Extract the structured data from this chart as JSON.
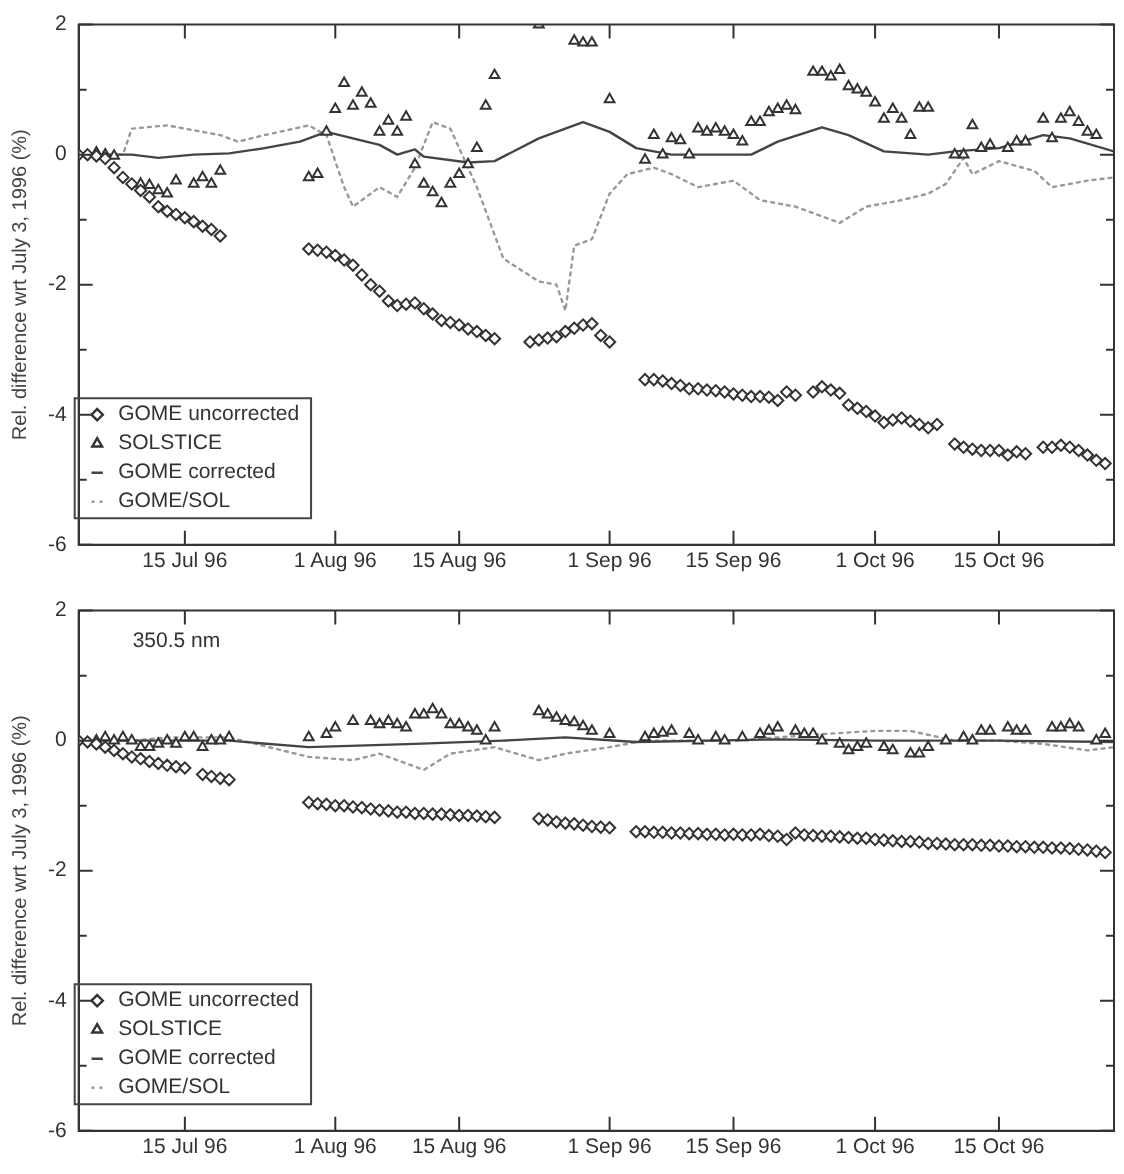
{
  "chart_data": [
    {
      "type": "scatter",
      "ylabel": "Rel. difference wrt July 3, 1996 (%)",
      "xlim": [
        "1996-07-03",
        "1996-10-28"
      ],
      "xticks": [
        {
          "value": "1996-07-15",
          "label": "15 Jul 96"
        },
        {
          "value": "1996-08-01",
          "label": "1 Aug 96"
        },
        {
          "value": "1996-08-15",
          "label": "15 Aug 96"
        },
        {
          "value": "1996-09-01",
          "label": "1 Sep 96"
        },
        {
          "value": "1996-09-15",
          "label": "15 Sep 96"
        },
        {
          "value": "1996-10-01",
          "label": "1 Oct 96"
        },
        {
          "value": "1996-10-15",
          "label": "15 Oct 96"
        }
      ],
      "ylim": [
        -6,
        2
      ],
      "yticks": [
        -6,
        {
          "value": -5,
          "label": null
        },
        -4,
        {
          "value": -3,
          "label": null
        },
        -2,
        {
          "value": -1,
          "label": null
        },
        0,
        {
          "value": 1,
          "label": null
        },
        2
      ],
      "legend": "bottom left",
      "series": [
        {
          "name": "GOME uncorrected",
          "type": "scatter",
          "marker": "diamond",
          "color": "#333333",
          "x": [
            "1996-07-03",
            "1996-07-04",
            "1996-07-05",
            "1996-07-06",
            "1996-07-07",
            "1996-07-08",
            "1996-07-09",
            "1996-07-10",
            "1996-07-11",
            "1996-07-12",
            "1996-07-13",
            "1996-07-14",
            "1996-07-15",
            "1996-07-16",
            "1996-07-17",
            "1996-07-18",
            "1996-07-19",
            "1996-07-29",
            "1996-07-30",
            "1996-07-31",
            "1996-08-01",
            "1996-08-02",
            "1996-08-03",
            "1996-08-04",
            "1996-08-05",
            "1996-08-06",
            "1996-08-07",
            "1996-08-08",
            "1996-08-09",
            "1996-08-10",
            "1996-08-11",
            "1996-08-12",
            "1996-08-13",
            "1996-08-14",
            "1996-08-15",
            "1996-08-16",
            "1996-08-17",
            "1996-08-18",
            "1996-08-19",
            "1996-08-23",
            "1996-08-24",
            "1996-08-25",
            "1996-08-26",
            "1996-08-27",
            "1996-08-28",
            "1996-08-29",
            "1996-08-30",
            "1996-08-31",
            "1996-09-01",
            "1996-09-05",
            "1996-09-06",
            "1996-09-07",
            "1996-09-08",
            "1996-09-09",
            "1996-09-10",
            "1996-09-11",
            "1996-09-12",
            "1996-09-13",
            "1996-09-14",
            "1996-09-15",
            "1996-09-16",
            "1996-09-17",
            "1996-09-18",
            "1996-09-19",
            "1996-09-20",
            "1996-09-21",
            "1996-09-22",
            "1996-09-24",
            "1996-09-25",
            "1996-09-26",
            "1996-09-27",
            "1996-09-28",
            "1996-09-29",
            "1996-09-30",
            "1996-10-01",
            "1996-10-02",
            "1996-10-03",
            "1996-10-04",
            "1996-10-05",
            "1996-10-06",
            "1996-10-07",
            "1996-10-08",
            "1996-10-10",
            "1996-10-11",
            "1996-10-12",
            "1996-10-13",
            "1996-10-14",
            "1996-10-15",
            "1996-10-16",
            "1996-10-17",
            "1996-10-18",
            "1996-10-20",
            "1996-10-21",
            "1996-10-22",
            "1996-10-23",
            "1996-10-24",
            "1996-10-25",
            "1996-10-26",
            "1996-10-27"
          ],
          "values": [
            0,
            0,
            -0.02,
            -0.06,
            -0.2,
            -0.35,
            -0.45,
            -0.55,
            -0.65,
            -0.8,
            -0.87,
            -0.92,
            -0.97,
            -1.03,
            -1.1,
            -1.15,
            -1.25,
            -1.45,
            -1.47,
            -1.5,
            -1.55,
            -1.62,
            -1.7,
            -1.85,
            -2.0,
            -2.1,
            -2.25,
            -2.32,
            -2.3,
            -2.28,
            -2.37,
            -2.45,
            -2.55,
            -2.58,
            -2.62,
            -2.68,
            -2.72,
            -2.78,
            -2.83,
            -2.88,
            -2.85,
            -2.82,
            -2.8,
            -2.72,
            -2.67,
            -2.62,
            -2.6,
            -2.78,
            -2.88,
            -3.46,
            -3.46,
            -3.48,
            -3.52,
            -3.55,
            -3.6,
            -3.6,
            -3.62,
            -3.63,
            -3.65,
            -3.68,
            -3.7,
            -3.72,
            -3.72,
            -3.73,
            -3.78,
            -3.65,
            -3.7,
            -3.65,
            -3.57,
            -3.62,
            -3.67,
            -3.85,
            -3.9,
            -3.95,
            -4.02,
            -4.12,
            -4.08,
            -4.05,
            -4.1,
            -4.15,
            -4.2,
            -4.15,
            -4.45,
            -4.5,
            -4.53,
            -4.55,
            -4.55,
            -4.55,
            -4.62,
            -4.57,
            -4.6,
            -4.5,
            -4.5,
            -4.47,
            -4.5,
            -4.55,
            -4.62,
            -4.7,
            -4.75
          ]
        },
        {
          "name": "SOLSTICE",
          "type": "scatter",
          "marker": "triangle",
          "color": "#333333",
          "x": [
            "1996-07-05",
            "1996-07-06",
            "1996-07-07",
            "1996-07-10",
            "1996-07-11",
            "1996-07-12",
            "1996-07-13",
            "1996-07-14",
            "1996-07-16",
            "1996-07-17",
            "1996-07-18",
            "1996-07-19",
            "1996-07-29",
            "1996-07-30",
            "1996-07-31",
            "1996-08-01",
            "1996-08-02",
            "1996-08-03",
            "1996-08-04",
            "1996-08-05",
            "1996-08-06",
            "1996-08-07",
            "1996-08-08",
            "1996-08-09",
            "1996-08-10",
            "1996-08-11",
            "1996-08-12",
            "1996-08-13",
            "1996-08-14",
            "1996-08-15",
            "1996-08-16",
            "1996-08-17",
            "1996-08-18",
            "1996-08-19",
            "1996-08-24",
            "1996-08-28",
            "1996-08-29",
            "1996-08-30",
            "1996-09-01",
            "1996-09-05",
            "1996-09-06",
            "1996-09-07",
            "1996-09-08",
            "1996-09-09",
            "1996-09-10",
            "1996-09-11",
            "1996-09-12",
            "1996-09-13",
            "1996-09-14",
            "1996-09-15",
            "1996-09-16",
            "1996-09-17",
            "1996-09-18",
            "1996-09-19",
            "1996-09-20",
            "1996-09-21",
            "1996-09-22",
            "1996-09-24",
            "1996-09-25",
            "1996-09-26",
            "1996-09-27",
            "1996-09-28",
            "1996-09-29",
            "1996-09-30",
            "1996-10-01",
            "1996-10-02",
            "1996-10-03",
            "1996-10-04",
            "1996-10-05",
            "1996-10-06",
            "1996-10-07",
            "1996-10-10",
            "1996-10-11",
            "1996-10-12",
            "1996-10-13",
            "1996-10-14",
            "1996-10-16",
            "1996-10-17",
            "1996-10-18",
            "1996-10-20",
            "1996-10-21",
            "1996-10-22",
            "1996-10-23",
            "1996-10-24",
            "1996-10-25",
            "1996-10-26"
          ],
          "values": [
            0.03,
            0.0,
            -0.02,
            -0.45,
            -0.47,
            -0.55,
            -0.6,
            -0.4,
            -0.45,
            -0.35,
            -0.45,
            -0.25,
            -0.35,
            -0.3,
            0.35,
            0.7,
            1.1,
            0.75,
            0.95,
            0.78,
            0.35,
            0.52,
            0.35,
            0.58,
            -0.15,
            -0.45,
            -0.58,
            -0.75,
            -0.45,
            -0.3,
            -0.15,
            0.1,
            0.75,
            1.22,
            2.0,
            1.75,
            1.72,
            1.72,
            0.85,
            -0.08,
            0.3,
            0.0,
            0.25,
            0.22,
            0.0,
            0.4,
            0.35,
            0.4,
            0.35,
            0.3,
            0.2,
            0.5,
            0.5,
            0.65,
            0.7,
            0.75,
            0.68,
            1.27,
            1.27,
            1.2,
            1.3,
            1.05,
            1.0,
            0.95,
            0.8,
            0.55,
            0.7,
            0.55,
            0.3,
            0.72,
            0.72,
            0.0,
            0.0,
            0.45,
            0.1,
            0.15,
            0.1,
            0.2,
            0.2,
            0.55,
            0.25,
            0.55,
            0.65,
            0.5,
            0.35,
            0.3
          ]
        },
        {
          "name": "GOME corrected",
          "type": "line",
          "line_style": "solid",
          "color": "#444444",
          "x": [
            "1996-07-03",
            "1996-07-09",
            "1996-07-12",
            "1996-07-16",
            "1996-07-20",
            "1996-07-24",
            "1996-07-28",
            "1996-07-31",
            "1996-08-03",
            "1996-08-06",
            "1996-08-08",
            "1996-08-10",
            "1996-08-11",
            "1996-08-16",
            "1996-08-19",
            "1996-08-24",
            "1996-08-29",
            "1996-09-01",
            "1996-09-04",
            "1996-09-08",
            "1996-09-12",
            "1996-09-17",
            "1996-09-20",
            "1996-09-25",
            "1996-09-28",
            "1996-10-02",
            "1996-10-07",
            "1996-10-10",
            "1996-10-15",
            "1996-10-20",
            "1996-10-23",
            "1996-10-28"
          ],
          "values": [
            0,
            0,
            -0.05,
            0,
            0.02,
            0.1,
            0.2,
            0.35,
            0.25,
            0.15,
            0.0,
            0.08,
            -0.03,
            -0.12,
            -0.1,
            0.25,
            0.5,
            0.35,
            0.1,
            0.0,
            0.0,
            0.0,
            0.2,
            0.42,
            0.3,
            0.05,
            0.0,
            0.05,
            0.1,
            0.3,
            0.25,
            0.05
          ]
        },
        {
          "name": "GOME/SOL",
          "type": "line",
          "line_style": "dotted",
          "color": "#999999",
          "x": [
            "1996-07-03",
            "1996-07-08",
            "1996-07-09",
            "1996-07-13",
            "1996-07-19",
            "1996-07-21",
            "1996-07-24",
            "1996-07-29",
            "1996-07-31",
            "1996-08-02",
            "1996-08-03",
            "1996-08-06",
            "1996-08-08",
            "1996-08-10",
            "1996-08-12",
            "1996-08-14",
            "1996-08-17",
            "1996-08-20",
            "1996-08-24",
            "1996-08-26",
            "1996-08-27",
            "1996-08-28",
            "1996-08-30",
            "1996-09-01",
            "1996-09-03",
            "1996-09-06",
            "1996-09-08",
            "1996-09-11",
            "1996-09-15",
            "1996-09-18",
            "1996-09-22",
            "1996-09-24",
            "1996-09-27",
            "1996-09-30",
            "1996-10-04",
            "1996-10-07",
            "1996-10-09",
            "1996-10-11",
            "1996-10-12",
            "1996-10-15",
            "1996-10-19",
            "1996-10-21",
            "1996-10-25",
            "1996-10-28"
          ],
          "values": [
            0,
            0.0,
            0.4,
            0.45,
            0.3,
            0.2,
            0.3,
            0.45,
            0.3,
            -0.5,
            -0.8,
            -0.5,
            -0.65,
            -0.2,
            0.5,
            0.4,
            -0.5,
            -1.6,
            -1.95,
            -2.0,
            -2.4,
            -1.4,
            -1.3,
            -0.6,
            -0.3,
            -0.2,
            -0.3,
            -0.5,
            -0.4,
            -0.7,
            -0.8,
            -0.9,
            -1.05,
            -0.8,
            -0.7,
            -0.6,
            -0.45,
            -0.05,
            -0.3,
            -0.1,
            -0.25,
            -0.5,
            -0.4,
            -0.35
          ]
        }
      ]
    },
    {
      "type": "scatter",
      "ylabel": "Rel. difference wrt July 3, 1996 (%)",
      "annotations": [
        "350.5 nm"
      ],
      "xlim": [
        "1996-07-03",
        "1996-10-28"
      ],
      "xticks": [
        {
          "value": "1996-07-15",
          "label": "15 Jul 96"
        },
        {
          "value": "1996-08-01",
          "label": "1 Aug 96"
        },
        {
          "value": "1996-08-15",
          "label": "15 Aug 96"
        },
        {
          "value": "1996-09-01",
          "label": "1 Sep 96"
        },
        {
          "value": "1996-09-15",
          "label": "15 Sep 96"
        },
        {
          "value": "1996-10-01",
          "label": "1 Oct 96"
        },
        {
          "value": "1996-10-15",
          "label": "15 Oct 96"
        }
      ],
      "ylim": [
        -6,
        2
      ],
      "yticks": [
        -6,
        {
          "value": -5,
          "label": null
        },
        -4,
        {
          "value": -3,
          "label": null
        },
        -2,
        {
          "value": -1,
          "label": null
        },
        0,
        {
          "value": 1,
          "label": null
        },
        2
      ],
      "legend": "bottom left",
      "series": [
        {
          "name": "GOME uncorrected",
          "type": "scatter",
          "marker": "diamond",
          "color": "#333333",
          "x": [
            "1996-07-03",
            "1996-07-04",
            "1996-07-05",
            "1996-07-06",
            "1996-07-07",
            "1996-07-08",
            "1996-07-09",
            "1996-07-10",
            "1996-07-11",
            "1996-07-12",
            "1996-07-13",
            "1996-07-14",
            "1996-07-15",
            "1996-07-17",
            "1996-07-18",
            "1996-07-19",
            "1996-07-20",
            "1996-07-29",
            "1996-07-30",
            "1996-07-31",
            "1996-08-01",
            "1996-08-02",
            "1996-08-03",
            "1996-08-04",
            "1996-08-05",
            "1996-08-06",
            "1996-08-07",
            "1996-08-08",
            "1996-08-09",
            "1996-08-10",
            "1996-08-11",
            "1996-08-12",
            "1996-08-13",
            "1996-08-14",
            "1996-08-15",
            "1996-08-16",
            "1996-08-17",
            "1996-08-18",
            "1996-08-19",
            "1996-08-24",
            "1996-08-25",
            "1996-08-26",
            "1996-08-27",
            "1996-08-28",
            "1996-08-29",
            "1996-08-30",
            "1996-08-31",
            "1996-09-01",
            "1996-09-04",
            "1996-09-05",
            "1996-09-06",
            "1996-09-07",
            "1996-09-08",
            "1996-09-09",
            "1996-09-10",
            "1996-09-11",
            "1996-09-12",
            "1996-09-13",
            "1996-09-14",
            "1996-09-15",
            "1996-09-16",
            "1996-09-17",
            "1996-09-18",
            "1996-09-19",
            "1996-09-20",
            "1996-09-21",
            "1996-09-22",
            "1996-09-23",
            "1996-09-24",
            "1996-09-25",
            "1996-09-26",
            "1996-09-27",
            "1996-09-28",
            "1996-09-29",
            "1996-09-30",
            "1996-10-01",
            "1996-10-02",
            "1996-10-03",
            "1996-10-04",
            "1996-10-05",
            "1996-10-06",
            "1996-10-07",
            "1996-10-08",
            "1996-10-09",
            "1996-10-10",
            "1996-10-11",
            "1996-10-12",
            "1996-10-13",
            "1996-10-14",
            "1996-10-15",
            "1996-10-16",
            "1996-10-17",
            "1996-10-18",
            "1996-10-19",
            "1996-10-20",
            "1996-10-21",
            "1996-10-22",
            "1996-10-23",
            "1996-10-24",
            "1996-10-25",
            "1996-10-26",
            "1996-10-27"
          ],
          "values": [
            0,
            -0.02,
            -0.05,
            -0.1,
            -0.15,
            -0.2,
            -0.25,
            -0.28,
            -0.32,
            -0.35,
            -0.38,
            -0.4,
            -0.42,
            -0.52,
            -0.55,
            -0.58,
            -0.6,
            -0.95,
            -0.97,
            -0.98,
            -1.0,
            -1.0,
            -1.02,
            -1.03,
            -1.05,
            -1.07,
            -1.08,
            -1.1,
            -1.1,
            -1.12,
            -1.12,
            -1.13,
            -1.13,
            -1.14,
            -1.15,
            -1.15,
            -1.16,
            -1.17,
            -1.18,
            -1.2,
            -1.22,
            -1.25,
            -1.27,
            -1.28,
            -1.3,
            -1.32,
            -1.33,
            -1.34,
            -1.4,
            -1.4,
            -1.41,
            -1.41,
            -1.42,
            -1.42,
            -1.43,
            -1.43,
            -1.44,
            -1.44,
            -1.45,
            -1.44,
            -1.45,
            -1.45,
            -1.44,
            -1.46,
            -1.47,
            -1.52,
            -1.42,
            -1.45,
            -1.46,
            -1.47,
            -1.47,
            -1.48,
            -1.49,
            -1.5,
            -1.5,
            -1.52,
            -1.53,
            -1.54,
            -1.55,
            -1.55,
            -1.56,
            -1.58,
            -1.58,
            -1.59,
            -1.6,
            -1.6,
            -1.6,
            -1.61,
            -1.61,
            -1.62,
            -1.62,
            -1.63,
            -1.63,
            -1.64,
            -1.64,
            -1.65,
            -1.65,
            -1.66,
            -1.67,
            -1.68,
            -1.7,
            -1.72
          ]
        },
        {
          "name": "SOLSTICE",
          "type": "scatter",
          "marker": "triangle",
          "color": "#333333",
          "x": [
            "1996-07-05",
            "1996-07-06",
            "1996-07-07",
            "1996-07-08",
            "1996-07-09",
            "1996-07-10",
            "1996-07-11",
            "1996-07-12",
            "1996-07-13",
            "1996-07-14",
            "1996-07-15",
            "1996-07-16",
            "1996-07-17",
            "1996-07-18",
            "1996-07-19",
            "1996-07-20",
            "1996-07-29",
            "1996-07-31",
            "1996-08-01",
            "1996-08-03",
            "1996-08-05",
            "1996-08-06",
            "1996-08-07",
            "1996-08-08",
            "1996-08-09",
            "1996-08-10",
            "1996-08-11",
            "1996-08-12",
            "1996-08-13",
            "1996-08-14",
            "1996-08-15",
            "1996-08-16",
            "1996-08-17",
            "1996-08-18",
            "1996-08-19",
            "1996-08-24",
            "1996-08-25",
            "1996-08-26",
            "1996-08-27",
            "1996-08-28",
            "1996-08-29",
            "1996-08-30",
            "1996-09-01",
            "1996-09-05",
            "1996-09-06",
            "1996-09-07",
            "1996-09-08",
            "1996-09-10",
            "1996-09-11",
            "1996-09-13",
            "1996-09-14",
            "1996-09-16",
            "1996-09-18",
            "1996-09-19",
            "1996-09-20",
            "1996-09-22",
            "1996-09-23",
            "1996-09-24",
            "1996-09-25",
            "1996-09-27",
            "1996-09-28",
            "1996-09-29",
            "1996-09-30",
            "1996-10-02",
            "1996-10-03",
            "1996-10-05",
            "1996-10-06",
            "1996-10-07",
            "1996-10-09",
            "1996-10-11",
            "1996-10-12",
            "1996-10-13",
            "1996-10-14",
            "1996-10-16",
            "1996-10-17",
            "1996-10-18",
            "1996-10-21",
            "1996-10-22",
            "1996-10-23",
            "1996-10-24",
            "1996-10-26",
            "1996-10-27"
          ],
          "values": [
            0.0,
            0.05,
            0.0,
            0.05,
            0.0,
            -0.1,
            -0.1,
            -0.05,
            0.0,
            -0.05,
            0.05,
            0.05,
            -0.1,
            0.0,
            0.0,
            0.05,
            0.05,
            0.1,
            0.2,
            0.3,
            0.3,
            0.25,
            0.3,
            0.25,
            0.2,
            0.4,
            0.4,
            0.48,
            0.4,
            0.25,
            0.25,
            0.2,
            0.15,
            0.0,
            0.2,
            0.45,
            0.4,
            0.35,
            0.3,
            0.28,
            0.22,
            0.15,
            0.1,
            0.05,
            0.1,
            0.12,
            0.15,
            0.1,
            0.0,
            0.05,
            0.0,
            0.05,
            0.1,
            0.15,
            0.2,
            0.15,
            0.1,
            0.1,
            0.0,
            -0.05,
            -0.15,
            -0.1,
            -0.05,
            -0.1,
            -0.15,
            -0.2,
            -0.2,
            -0.1,
            0.0,
            0.05,
            0.0,
            0.15,
            0.15,
            0.2,
            0.15,
            0.15,
            0.2,
            0.2,
            0.25,
            0.2,
            0.0,
            0.1
          ]
        },
        {
          "name": "GOME corrected",
          "type": "line",
          "line_style": "solid",
          "color": "#444444",
          "x": [
            "1996-07-03",
            "1996-07-20",
            "1996-07-29",
            "1996-08-10",
            "1996-08-20",
            "1996-08-27",
            "1996-09-04",
            "1996-09-20",
            "1996-10-01",
            "1996-10-15",
            "1996-10-28"
          ],
          "values": [
            0,
            0.0,
            -0.1,
            -0.05,
            0.0,
            0.05,
            -0.02,
            0.02,
            0.0,
            0.0,
            -0.02
          ]
        },
        {
          "name": "GOME/SOL",
          "type": "line",
          "line_style": "dotted",
          "color": "#999999",
          "x": [
            "1996-07-03",
            "1996-07-09",
            "1996-07-13",
            "1996-07-20",
            "1996-07-29",
            "1996-08-03",
            "1996-08-06",
            "1996-08-11",
            "1996-08-14",
            "1996-08-19",
            "1996-08-24",
            "1996-08-27",
            "1996-09-01",
            "1996-09-05",
            "1996-09-15",
            "1996-09-25",
            "1996-10-01",
            "1996-10-05",
            "1996-10-10",
            "1996-10-15",
            "1996-10-20",
            "1996-10-25",
            "1996-10-28"
          ],
          "values": [
            0,
            0.0,
            0.05,
            0.05,
            -0.25,
            -0.3,
            -0.2,
            -0.45,
            -0.2,
            -0.1,
            -0.3,
            -0.2,
            -0.1,
            0.0,
            0.0,
            0.1,
            0.15,
            0.15,
            0.0,
            0.0,
            -0.05,
            -0.15,
            -0.1
          ]
        }
      ]
    }
  ]
}
